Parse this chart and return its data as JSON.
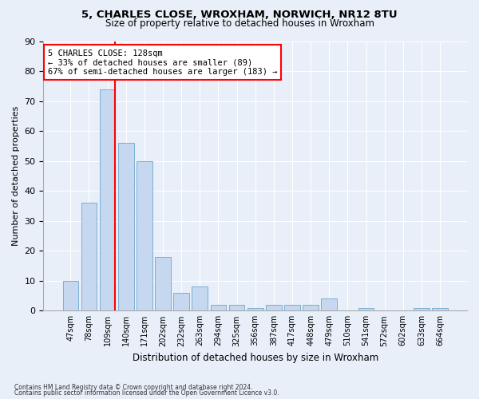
{
  "title1": "5, CHARLES CLOSE, WROXHAM, NORWICH, NR12 8TU",
  "title2": "Size of property relative to detached houses in Wroxham",
  "xlabel": "Distribution of detached houses by size in Wroxham",
  "ylabel": "Number of detached properties",
  "footer1": "Contains HM Land Registry data © Crown copyright and database right 2024.",
  "footer2": "Contains public sector information licensed under the Open Government Licence v3.0.",
  "annotation_title": "5 CHARLES CLOSE: 128sqm",
  "annotation_line2": "← 33% of detached houses are smaller (89)",
  "annotation_line3": "67% of semi-detached houses are larger (183) →",
  "bar_labels": [
    "47sqm",
    "78sqm",
    "109sqm",
    "140sqm",
    "171sqm",
    "202sqm",
    "232sqm",
    "263sqm",
    "294sqm",
    "325sqm",
    "356sqm",
    "387sqm",
    "417sqm",
    "448sqm",
    "479sqm",
    "510sqm",
    "541sqm",
    "572sqm",
    "602sqm",
    "633sqm",
    "664sqm"
  ],
  "bar_values": [
    10,
    36,
    74,
    56,
    50,
    18,
    6,
    8,
    2,
    2,
    1,
    2,
    2,
    2,
    4,
    0,
    1,
    0,
    0,
    1,
    1
  ],
  "bar_color": "#c5d8ef",
  "bar_edge_color": "#7bafd4",
  "red_line_index": 2,
  "ylim": [
    0,
    90
  ],
  "yticks": [
    0,
    10,
    20,
    30,
    40,
    50,
    60,
    70,
    80,
    90
  ],
  "bg_color": "#e8eff8",
  "grid_color": "#ffffff",
  "figsize": [
    6.0,
    5.0
  ],
  "dpi": 100
}
